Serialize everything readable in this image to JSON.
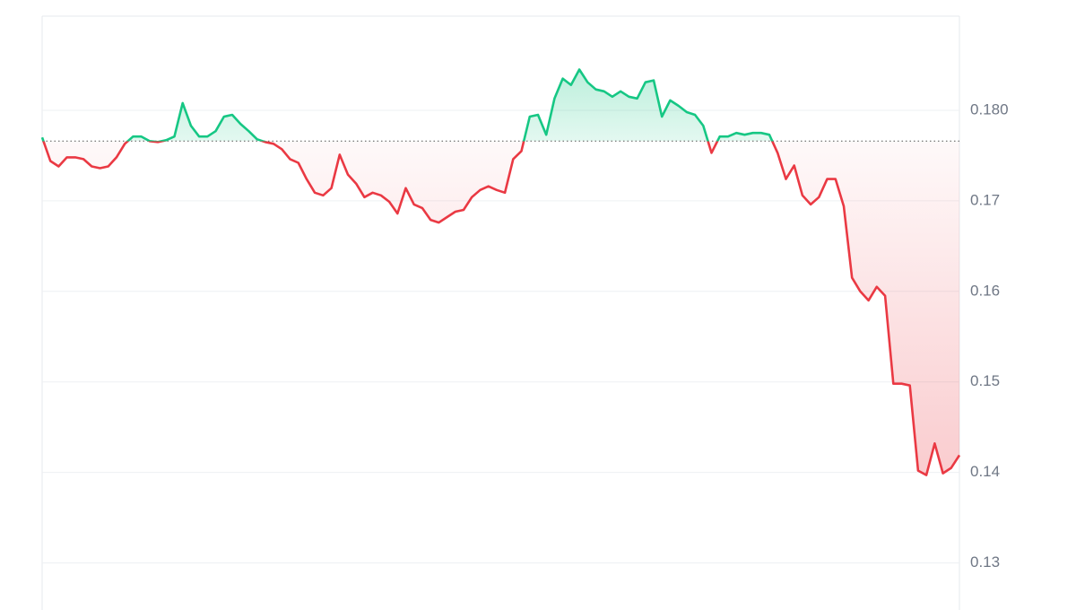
{
  "chart_data": {
    "type": "line",
    "values": [
      0.177,
      0.1744,
      0.1738,
      0.1748,
      0.1748,
      0.1746,
      0.1738,
      0.1736,
      0.1738,
      0.1748,
      0.1763,
      0.1771,
      0.1771,
      0.1766,
      0.1765,
      0.1767,
      0.1771,
      0.1808,
      0.1783,
      0.1771,
      0.1771,
      0.1777,
      0.1793,
      0.1795,
      0.1785,
      0.1777,
      0.1768,
      0.1765,
      0.1763,
      0.1757,
      0.1746,
      0.1742,
      0.1724,
      0.1709,
      0.1706,
      0.1714,
      0.1751,
      0.1729,
      0.1719,
      0.1704,
      0.1709,
      0.1706,
      0.1699,
      0.1686,
      0.1714,
      0.1696,
      0.1692,
      0.1679,
      0.1676,
      0.1682,
      0.1688,
      0.169,
      0.1704,
      0.1712,
      0.1716,
      0.1712,
      0.1709,
      0.1746,
      0.1755,
      0.1793,
      0.1795,
      0.1773,
      0.1813,
      0.1835,
      0.1828,
      0.1845,
      0.1831,
      0.1823,
      0.1821,
      0.1815,
      0.1821,
      0.1815,
      0.1813,
      0.1831,
      0.1833,
      0.1793,
      0.1811,
      0.1805,
      0.1798,
      0.1795,
      0.1783,
      0.1753,
      0.1771,
      0.1771,
      0.1775,
      0.1773,
      0.1775,
      0.1775,
      0.1773,
      0.1753,
      0.1724,
      0.1739,
      0.1706,
      0.1696,
      0.1704,
      0.1724,
      0.1724,
      0.1694,
      0.1615,
      0.16,
      0.159,
      0.1605,
      0.1595,
      0.1498,
      0.1498,
      0.1496,
      0.1402,
      0.1397,
      0.1432,
      0.1399,
      0.1405,
      0.1419
    ],
    "baseline": 0.1766,
    "up_color": "#16c784",
    "down_color": "#ea3943",
    "ylim": [
      0.1248,
      0.1904
    ],
    "yticks": [
      0.13,
      0.14,
      0.15,
      0.16,
      0.17,
      {
        "value": 0.18,
        "label": "0.180"
      }
    ],
    "grid": true
  }
}
